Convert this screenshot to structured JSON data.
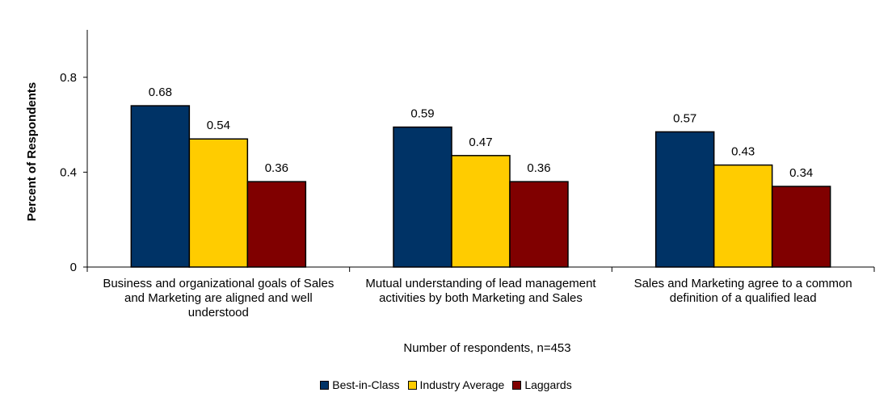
{
  "chart_data": {
    "type": "bar",
    "categories": [
      [
        "Business and organizational goals of Sales",
        "and Marketing are aligned and well",
        "understood"
      ],
      [
        "Mutual understanding of lead management",
        "activities by both Marketing and Sales"
      ],
      [
        "Sales and Marketing agree to a common",
        "definition of a qualified lead"
      ]
    ],
    "series": [
      {
        "name": "Best-in-Class",
        "color": "#003366",
        "values": [
          0.68,
          0.59,
          0.57
        ]
      },
      {
        "name": "Industry Average",
        "color": "#ffcc00",
        "values": [
          0.54,
          0.47,
          0.43
        ]
      },
      {
        "name": "Laggards",
        "color": "#800000",
        "values": [
          0.36,
          0.36,
          0.34
        ]
      }
    ],
    "ylabel": "Percent of Respondents",
    "xlabel": "Number of respondents,  n=453",
    "ylim": [
      0,
      1
    ],
    "yticks": [
      0,
      0.4,
      0.8
    ],
    "ytick_labels": [
      "0",
      "0.4",
      "0.8"
    ],
    "data_labels": [
      [
        "0.68",
        "0.59",
        "0.57"
      ],
      [
        "0.54",
        "0.47",
        "0.43"
      ],
      [
        "0.36",
        "0.36",
        "0.34"
      ]
    ],
    "grid": false,
    "legend_position": "bottom"
  }
}
